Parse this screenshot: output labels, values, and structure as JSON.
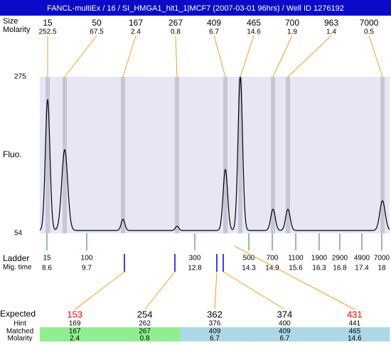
{
  "title": "FANCL-multiEx / 16 / SI_HMGA1_hit1_1|MCF7 (2007-03-01 96hrs) / Well ID 1276192",
  "peaks": {
    "size_label": "Size",
    "molarity_label": "Molarity",
    "items": [
      {
        "size": "15",
        "molarity": "252.5",
        "height": 243
      },
      {
        "size": "50",
        "molarity": "67.5",
        "height": 172
      },
      {
        "size": "167",
        "molarity": "2.4",
        "height": 74
      },
      {
        "size": "267",
        "molarity": "0.8",
        "height": 64
      },
      {
        "size": "409",
        "molarity": "6.7",
        "height": 144
      },
      {
        "size": "465",
        "molarity": "14.6",
        "height": 275
      },
      {
        "size": "700",
        "molarity": "1.9",
        "height": 88
      },
      {
        "size": "963",
        "molarity": "1.4",
        "height": 88
      },
      {
        "size": "7000",
        "molarity": "0.5",
        "height": 100
      }
    ]
  },
  "plot": {
    "y_label": "Fluo.",
    "ylim": [
      54,
      275
    ],
    "yticks": [
      54,
      275
    ],
    "baseline": 58
  },
  "ladder": {
    "label": "Ladder",
    "time_label": "Mig. time",
    "items": [
      {
        "size": "15",
        "time": "8.6"
      },
      {
        "size": "100",
        "time": "9.7"
      },
      {
        "size": "300",
        "time": "12.8"
      },
      {
        "size": "500",
        "time": "14.3"
      },
      {
        "size": "700",
        "time": "14.9"
      },
      {
        "size": "1100",
        "time": "15.6"
      },
      {
        "size": "1900",
        "time": "16.3"
      },
      {
        "size": "2900",
        "time": "16.8"
      },
      {
        "size": "4900",
        "time": "17.4"
      },
      {
        "size": "7000",
        "time": "18"
      }
    ]
  },
  "expected": {
    "label": "Expected",
    "hint_label": "Hint",
    "matched_label": "Matched",
    "molarity_label": "Molarity",
    "items": [
      {
        "expected": "153",
        "color": "#ff0000",
        "hint": "169",
        "matched": "167",
        "molarity": "2.4",
        "background": "#90ee90"
      },
      {
        "expected": "254",
        "color": "#000000",
        "hint": "262",
        "matched": "267",
        "molarity": "0.8",
        "background": "#90ee90"
      },
      {
        "expected": "362",
        "color": "#000000",
        "hint": "376",
        "matched": "409",
        "molarity": "6.7",
        "background": "#add8e6"
      },
      {
        "expected": "374",
        "color": "#000000",
        "hint": "400",
        "matched": "409",
        "molarity": "6.7",
        "background": "#add8e6"
      },
      {
        "expected": "431",
        "color": "#ff0000",
        "hint": "441",
        "matched": "465",
        "molarity": "14.6",
        "background": "#add8e6"
      }
    ]
  }
}
